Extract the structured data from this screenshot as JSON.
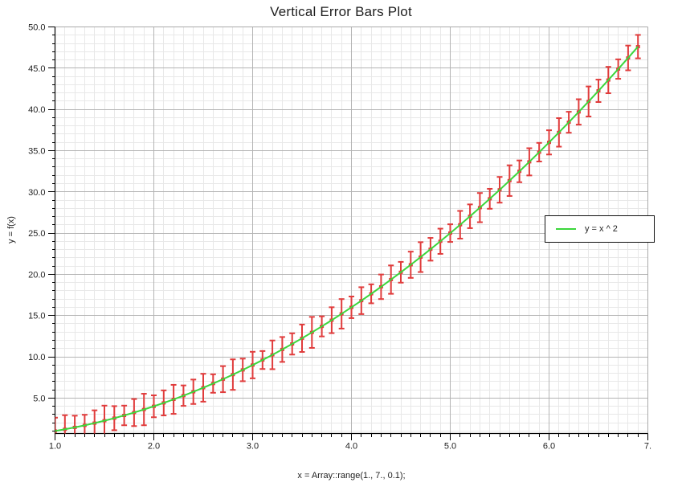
{
  "chart_data": {
    "type": "line",
    "title": "Vertical Error Bars Plot",
    "xlabel": "x = Array::range(1., 7., 0.1);",
    "ylabel": "y = f(x)",
    "legend": {
      "position": "right-middle",
      "entries": [
        {
          "label": "y = x ^ 2",
          "color": "#3cd63c",
          "marker": "line"
        }
      ]
    },
    "xlim": [
      1.0,
      7.0
    ],
    "ylim": [
      0.7,
      50.0
    ],
    "xticks": {
      "values": [
        1,
        2,
        3,
        4,
        5,
        6,
        7
      ],
      "labels": [
        "1.0",
        "2.0",
        "3.0",
        "4.0",
        "5.0",
        "6.0",
        "7."
      ],
      "minor_step": 0.1
    },
    "yticks": {
      "values": [
        5,
        10,
        15,
        20,
        25,
        30,
        35,
        40,
        45,
        50
      ],
      "labels": [
        "5.0",
        "10.0",
        "15.0",
        "20.0",
        "25.0",
        "30.0",
        "35.0",
        "40.0",
        "45.0",
        "50.0"
      ],
      "minor_step": 1.0
    },
    "grid": {
      "major": true,
      "minor": true
    },
    "series": [
      {
        "name": "y = x ^ 2",
        "type": "line",
        "color": "#3cd63c",
        "x": [
          1,
          1.1,
          1.2,
          1.3,
          1.4,
          1.5,
          1.6,
          1.7,
          1.8,
          1.9,
          2,
          2.1,
          2.2,
          2.3,
          2.4,
          2.5,
          2.6,
          2.7,
          2.8,
          2.9,
          3,
          3.1,
          3.2,
          3.3,
          3.4,
          3.5,
          3.6,
          3.7,
          3.8,
          3.9,
          4,
          4.1,
          4.2,
          4.3,
          4.4,
          4.5,
          4.6,
          4.7,
          4.8,
          4.9,
          5,
          5.1,
          5.2,
          5.3,
          5.4,
          5.5,
          5.6,
          5.7,
          5.8,
          5.9,
          6,
          6.1,
          6.2,
          6.3,
          6.4,
          6.5,
          6.6,
          6.7,
          6.8,
          6.9
        ],
        "y": [
          1,
          1.21,
          1.44,
          1.69,
          1.96,
          2.25,
          2.56,
          2.89,
          3.24,
          3.61,
          4,
          4.41,
          4.84,
          5.29,
          5.76,
          6.25,
          6.76,
          7.29,
          7.84,
          8.41,
          9,
          9.61,
          10.24,
          10.89,
          11.56,
          12.25,
          12.96,
          13.69,
          14.44,
          15.21,
          16,
          16.81,
          17.64,
          18.49,
          19.36,
          20.25,
          21.16,
          22.09,
          23.04,
          24.01,
          25,
          26.01,
          27.04,
          28.09,
          29.16,
          30.25,
          31.36,
          32.49,
          33.64,
          34.81,
          36,
          37.21,
          38.44,
          39.69,
          40.96,
          42.25,
          43.56,
          44.89,
          46.24,
          47.61
        ]
      }
    ],
    "error_bars": {
      "orientation": "vertical",
      "color": "#e03c3c",
      "half_lengths": [
        1.62,
        1.71,
        1.42,
        1.28,
        1.55,
        1.83,
        1.46,
        1.19,
        1.64,
        1.91,
        1.33,
        1.52,
        1.76,
        1.24,
        1.48,
        1.69,
        1.12,
        1.58,
        1.85,
        1.37,
        1.61,
        1.09,
        1.74,
        1.51,
        1.29,
        1.66,
        1.88,
        1.22,
        1.57,
        1.79,
        1.31,
        1.63,
        1.15,
        1.49,
        1.72,
        1.26,
        1.59,
        1.81,
        1.38,
        1.53,
        1.07,
        1.68,
        1.44,
        1.77,
        1.21,
        1.56,
        1.86,
        1.32,
        1.65,
        1.13,
        1.47,
        1.73,
        1.27,
        1.54,
        1.82,
        1.36,
        1.6,
        1.18,
        1.5,
        1.42
      ]
    },
    "colors": {
      "background": "#ffffff",
      "grid_minor": "#e8e8e8",
      "grid_major": "#b4b4b4",
      "frame": "#aaaaaa",
      "axis": "#000000",
      "text": "#1f1f1f"
    }
  }
}
